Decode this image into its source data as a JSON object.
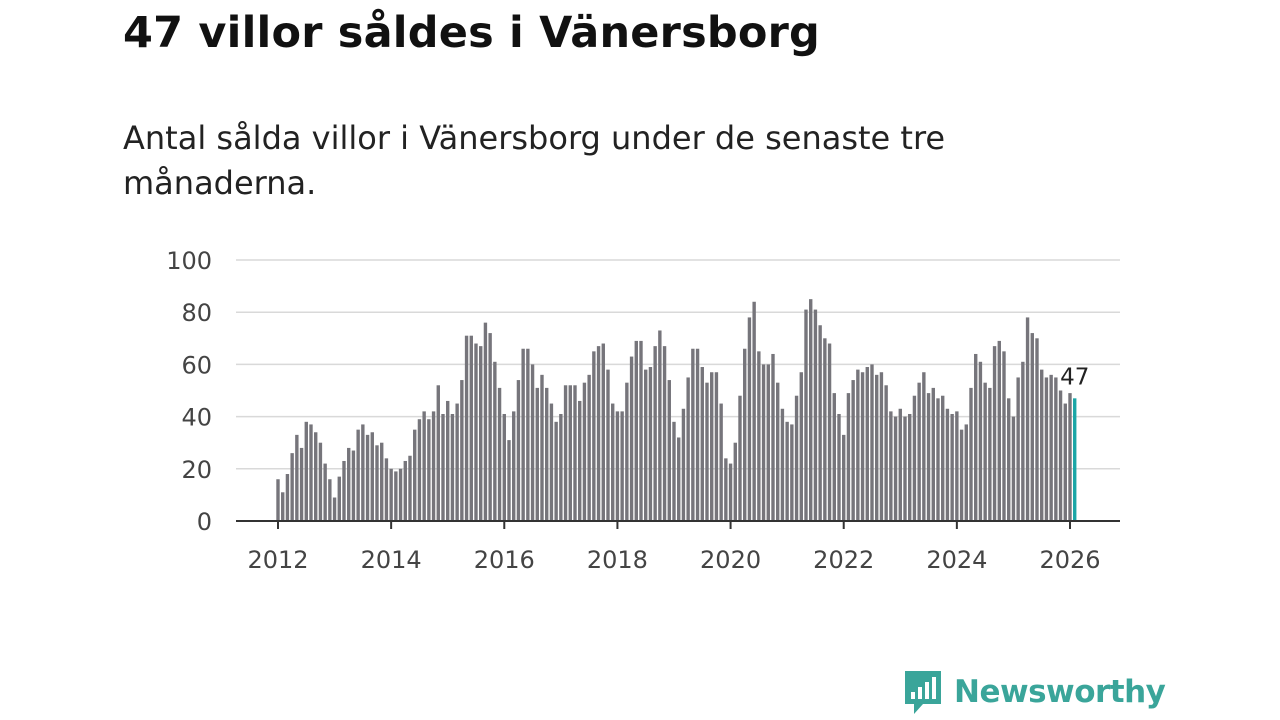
{
  "title": "47 villor såldes i Vänersborg",
  "subtitle": "Antal sålda villor i Vänersborg under de senaste tre månaderna.",
  "brand": "Newsworthy",
  "colors": {
    "bar": "#76757b",
    "highlight": "#1aa6a6",
    "grid": "#d9d9d9",
    "axis": "#333333",
    "brand": "#3aa59a"
  },
  "chart_data": {
    "type": "bar",
    "title": "47 villor såldes i Vänersborg",
    "xlabel": "",
    "ylabel": "",
    "ylim": [
      0,
      100
    ],
    "yticks": [
      "0",
      "20",
      "40",
      "60",
      "80",
      "100"
    ],
    "xticks": [
      "2012",
      "2014",
      "2016",
      "2018",
      "2020",
      "2022",
      "2024",
      "2026"
    ],
    "x_start": "2012-01",
    "last_label": "47",
    "values": [
      16,
      11,
      18,
      26,
      33,
      28,
      38,
      37,
      34,
      30,
      22,
      16,
      9,
      17,
      23,
      28,
      27,
      35,
      37,
      33,
      34,
      29,
      30,
      24,
      20,
      19,
      20,
      23,
      25,
      35,
      39,
      42,
      39,
      42,
      52,
      41,
      46,
      41,
      45,
      54,
      71,
      71,
      68,
      67,
      76,
      72,
      61,
      51,
      41,
      31,
      42,
      54,
      66,
      66,
      60,
      51,
      56,
      51,
      45,
      38,
      41,
      52,
      52,
      52,
      46,
      53,
      56,
      65,
      67,
      68,
      58,
      45,
      42,
      42,
      53,
      63,
      69,
      69,
      58,
      59,
      67,
      73,
      67,
      54,
      38,
      32,
      43,
      55,
      66,
      66,
      59,
      53,
      57,
      57,
      45,
      24,
      22,
      30,
      48,
      66,
      78,
      84,
      65,
      60,
      60,
      64,
      53,
      43,
      38,
      37,
      48,
      57,
      81,
      85,
      81,
      75,
      70,
      68,
      49,
      41,
      33,
      49,
      54,
      58,
      57,
      59,
      60,
      56,
      57,
      52,
      42,
      40,
      43,
      40,
      41,
      48,
      53,
      57,
      49,
      51,
      47,
      48,
      43,
      41,
      42,
      35,
      37,
      51,
      64,
      61,
      53,
      51,
      67,
      69,
      65,
      47,
      40,
      55,
      61,
      78,
      72,
      70,
      58,
      55,
      56,
      55,
      50,
      45,
      49,
      47
    ]
  }
}
